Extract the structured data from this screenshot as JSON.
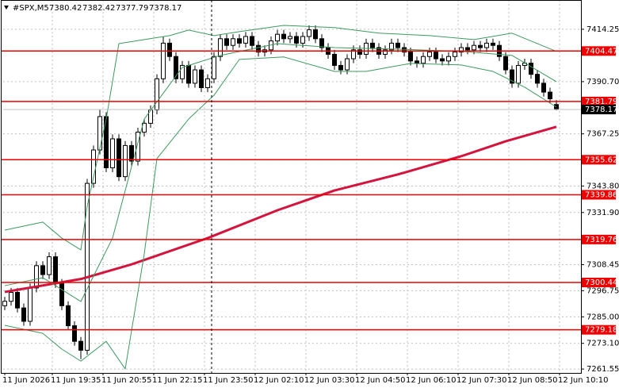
{
  "chart_data": {
    "type": "candlestick",
    "symbol": "#SPX,M5",
    "xlim": [
      -0.25,
      91
    ],
    "ylim": [
      7259.8,
      7427.4
    ],
    "grid": true,
    "xticks": [
      {
        "value": 0,
        "label": "11 Jun 2026"
      },
      {
        "value": 7.5,
        "label": "11 Jun 19:35"
      },
      {
        "value": 15.5,
        "label": "11 Jun 20:55"
      },
      {
        "value": 23.5,
        "label": "11 Jun 22:15"
      },
      {
        "value": 31.5,
        "label": "11 Jun 23:50"
      },
      {
        "value": 39.5,
        "label": "12 Jun 02:10"
      },
      {
        "value": 47.5,
        "label": "12 Jun 03:30"
      },
      {
        "value": 55.5,
        "label": "12 Jun 04:50"
      },
      {
        "value": 63.5,
        "label": "12 Jun 06:10"
      },
      {
        "value": 71.5,
        "label": "12 Jun 07:30"
      },
      {
        "value": 79.5,
        "label": "12 Jun 08:50"
      },
      {
        "value": 87.5,
        "label": "12 Jun 10:10"
      }
    ],
    "yticks": [
      7414.25,
      {
        "value": 7390.7,
        "label": "7390.70"
      },
      7367.25,
      {
        "value": 7343.8,
        "label": "7343.80"
      },
      {
        "value": 7331.9,
        "label": "7331.90"
      },
      7308.45,
      7296.75,
      {
        "value": 7285,
        "label": "7285.00"
      },
      {
        "value": 7273.1,
        "label": "7273.10"
      },
      7261.55
    ],
    "levels": [
      7404.47,
      7381.79,
      7355.62,
      7339.86,
      7319.76,
      7300.44,
      7279.18
    ],
    "level_color": "#ee0000",
    "candle_color": "#000000",
    "open": [
      7290,
      7292,
      7296,
      7289,
      7283,
      7298,
      7308,
      7304,
      7312,
      7300,
      7290,
      7281,
      7274,
      7270,
      7345,
      7360,
      7375,
      7352,
      7365,
      7348,
      7362,
      7355,
      7368,
      7372,
      7378,
      7392,
      7408,
      7402,
      7392,
      7398,
      7390,
      7396,
      7388,
      7392,
      7402,
      7410,
      7407,
      7410,
      7408,
      7411,
      7407,
      7404,
      7405,
      7409,
      7412,
      7410,
      7411,
      7408,
      7411,
      7414,
      7410,
      7406,
      7403,
      7398,
      7396,
      7401,
      7405,
      7403,
      7408,
      7406,
      7403,
      7405,
      7408,
      7406,
      7404,
      7400,
      7399,
      7402,
      7404,
      7401,
      7400,
      7402,
      7404,
      7406,
      7405,
      7407,
      7406,
      7408,
      7407,
      7402,
      7396,
      7390,
      7398,
      7399,
      7394,
      7390,
      7386,
      7380.42
    ],
    "high": [
      7294,
      7298,
      7298,
      7291,
      7300,
      7310,
      7310,
      7314,
      7314,
      7302,
      7292,
      7283,
      7276,
      7347,
      7362,
      7378,
      7377,
      7367,
      7367,
      7364,
      7364,
      7370,
      7374,
      7380,
      7394,
      7411,
      7410,
      7404,
      7400,
      7400,
      7398,
      7398,
      7394,
      7404,
      7412,
      7412,
      7412,
      7412,
      7413,
      7413,
      7409,
      7407,
      7411,
      7414,
      7414,
      7413,
      7413,
      7413,
      7416,
      7416,
      7412,
      7408,
      7405,
      7400,
      7403,
      7407,
      7407,
      7410,
      7410,
      7408,
      7407,
      7410,
      7410,
      7408,
      7406,
      7402,
      7404,
      7406,
      7406,
      7403,
      7404,
      7406,
      7408,
      7408,
      7409,
      7409,
      7410,
      7410,
      7409,
      7404,
      7398,
      7400,
      7401,
      7401,
      7396,
      7392,
      7388,
      7382.42
    ],
    "low": [
      7288,
      7290,
      7287,
      7281,
      7281,
      7296,
      7302,
      7302,
      7298,
      7288,
      7279,
      7272,
      7266,
      7268,
      7343,
      7358,
      7350,
      7350,
      7346,
      7346,
      7353,
      7353,
      7366,
      7370,
      7376,
      7390,
      7400,
      7390,
      7390,
      7388,
      7388,
      7386,
      7386,
      7390,
      7400,
      7405,
      7405,
      7406,
      7406,
      7405,
      7402,
      7402,
      7403,
      7407,
      7408,
      7408,
      7406,
      7406,
      7409,
      7408,
      7404,
      7401,
      7396,
      7394,
      7394,
      7399,
      7401,
      7401,
      7404,
      7401,
      7401,
      7403,
      7404,
      7402,
      7398,
      7397,
      7397,
      7400,
      7399,
      7398,
      7398,
      7400,
      7402,
      7403,
      7403,
      7404,
      7404,
      7405,
      7400,
      7394,
      7388,
      7388,
      7396,
      7392,
      7388,
      7384,
      7381,
      7377.79
    ],
    "close": [
      7292,
      7296,
      7289,
      7283,
      7298,
      7308,
      7304,
      7312,
      7300,
      7290,
      7281,
      7274,
      7270,
      7345,
      7360,
      7375,
      7352,
      7365,
      7348,
      7362,
      7355,
      7368,
      7372,
      7378,
      7392,
      7408,
      7402,
      7392,
      7398,
      7390,
      7396,
      7388,
      7392,
      7402,
      7410,
      7407,
      7410,
      7408,
      7411,
      7407,
      7404,
      7405,
      7409,
      7412,
      7410,
      7411,
      7408,
      7411,
      7414,
      7410,
      7406,
      7403,
      7398,
      7396,
      7401,
      7405,
      7403,
      7408,
      7406,
      7403,
      7405,
      7408,
      7406,
      7404,
      7400,
      7399,
      7402,
      7404,
      7401,
      7400,
      7402,
      7404,
      7406,
      7405,
      7407,
      7406,
      7408,
      7407,
      7402,
      7396,
      7390,
      7398,
      7399,
      7394,
      7390,
      7386,
      7383,
      7378.17
    ],
    "series": [
      {
        "color": "#d4143c",
        "width": 3,
        "x": [
          0,
          12,
          20,
          32,
          43,
          52,
          62,
          72,
          79,
          87
        ],
        "values": [
          7296.2,
          7302,
          7308.6,
          7320.4,
          7332.9,
          7341.8,
          7349,
          7357.2,
          7363.9,
          7370.4
        ]
      },
      {
        "color": "#3c9a5f",
        "width": 1,
        "x": [
          0,
          6,
          9,
          12,
          13,
          16,
          18,
          22,
          26,
          29,
          33,
          37,
          44,
          52,
          59,
          67,
          74,
          80,
          87
        ],
        "values": [
          7324.0,
          7327.6,
          7320.4,
          7315.1,
          7334.7,
          7373.9,
          7407.8,
          7409.6,
          7411.4,
          7413.9,
          7411.4,
          7413.2,
          7416.0,
          7415.0,
          7412.5,
          7411.4,
          7409.6,
          7412.5,
          7404.3
        ]
      },
      {
        "color": "#3c9a5f",
        "width": 1,
        "x": [
          0,
          6,
          12,
          17,
          22,
          28,
          34,
          43,
          52,
          62,
          72,
          80,
          87
        ],
        "values": [
          7299.0,
          7302.6,
          7291.9,
          7320.4,
          7373.9,
          7397.1,
          7402.5,
          7407.8,
          7406.0,
          7405.3,
          7404.3,
          7402.5,
          7390.7
        ]
      },
      {
        "color": "#3c9a5f",
        "width": 1,
        "x": [
          0,
          6,
          9,
          12,
          16,
          19,
          22,
          24,
          29,
          33,
          37,
          44,
          52,
          57,
          64,
          72,
          77,
          82,
          87
        ],
        "values": [
          7281.2,
          7277.6,
          7270.5,
          7265.1,
          7274.0,
          7261.6,
          7313.3,
          7356.1,
          7373.9,
          7384.6,
          7400.7,
          7401.8,
          7395.3,
          7395.3,
          7398.9,
          7398.2,
          7395.3,
          7388.2,
          7379.3
        ]
      }
    ]
  }
}
